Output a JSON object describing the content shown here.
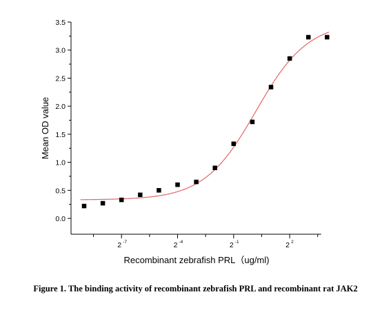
{
  "chart_data": {
    "type": "scatter",
    "title": "",
    "xlabel": "Recombinant zebrafish PRL（ug/ml)",
    "ylabel": "Mean OD value",
    "x_scale": "log2",
    "x_ticks": [
      {
        "exp": -7,
        "base": "2",
        "sup": "-7"
      },
      {
        "exp": -4,
        "base": "2",
        "sup": "-4"
      },
      {
        "exp": -1,
        "base": "2",
        "sup": "-1"
      },
      {
        "exp": 2,
        "base": "2",
        "sup": "2"
      }
    ],
    "y_ticks": [
      "0.0",
      "0.5",
      "1.0",
      "1.5",
      "2.0",
      "2.5",
      "3.0",
      "3.5"
    ],
    "xlim_log2": [
      -9.5,
      3.5
    ],
    "ylim": [
      -0.15,
      3.5
    ],
    "series": [
      {
        "marker": "square",
        "color": "#000000",
        "points": [
          {
            "log2x": -9,
            "y": 0.22
          },
          {
            "log2x": -8,
            "y": 0.27
          },
          {
            "log2x": -7,
            "y": 0.33
          },
          {
            "log2x": -6,
            "y": 0.42
          },
          {
            "log2x": -5,
            "y": 0.5
          },
          {
            "log2x": -4,
            "y": 0.6
          },
          {
            "log2x": -3,
            "y": 0.65
          },
          {
            "log2x": -2,
            "y": 0.9
          },
          {
            "log2x": -1,
            "y": 1.33
          },
          {
            "log2x": 0,
            "y": 1.72
          },
          {
            "log2x": 1,
            "y": 2.34
          },
          {
            "log2x": 2,
            "y": 2.85
          },
          {
            "log2x": 3,
            "y": 3.23
          },
          {
            "log2x": 4,
            "y": 3.23
          }
        ]
      }
    ],
    "fit_curve": {
      "color": "#e06666",
      "model": "sigmoidal",
      "bottom": 0.33,
      "top": 3.5,
      "log2_ec50": 0.2,
      "hill_slope": 0.72
    },
    "grid": false,
    "legend": "none"
  },
  "caption": "Figure 1. The binding activity of recombinant zebrafish PRL and recombinant rat JAK2"
}
